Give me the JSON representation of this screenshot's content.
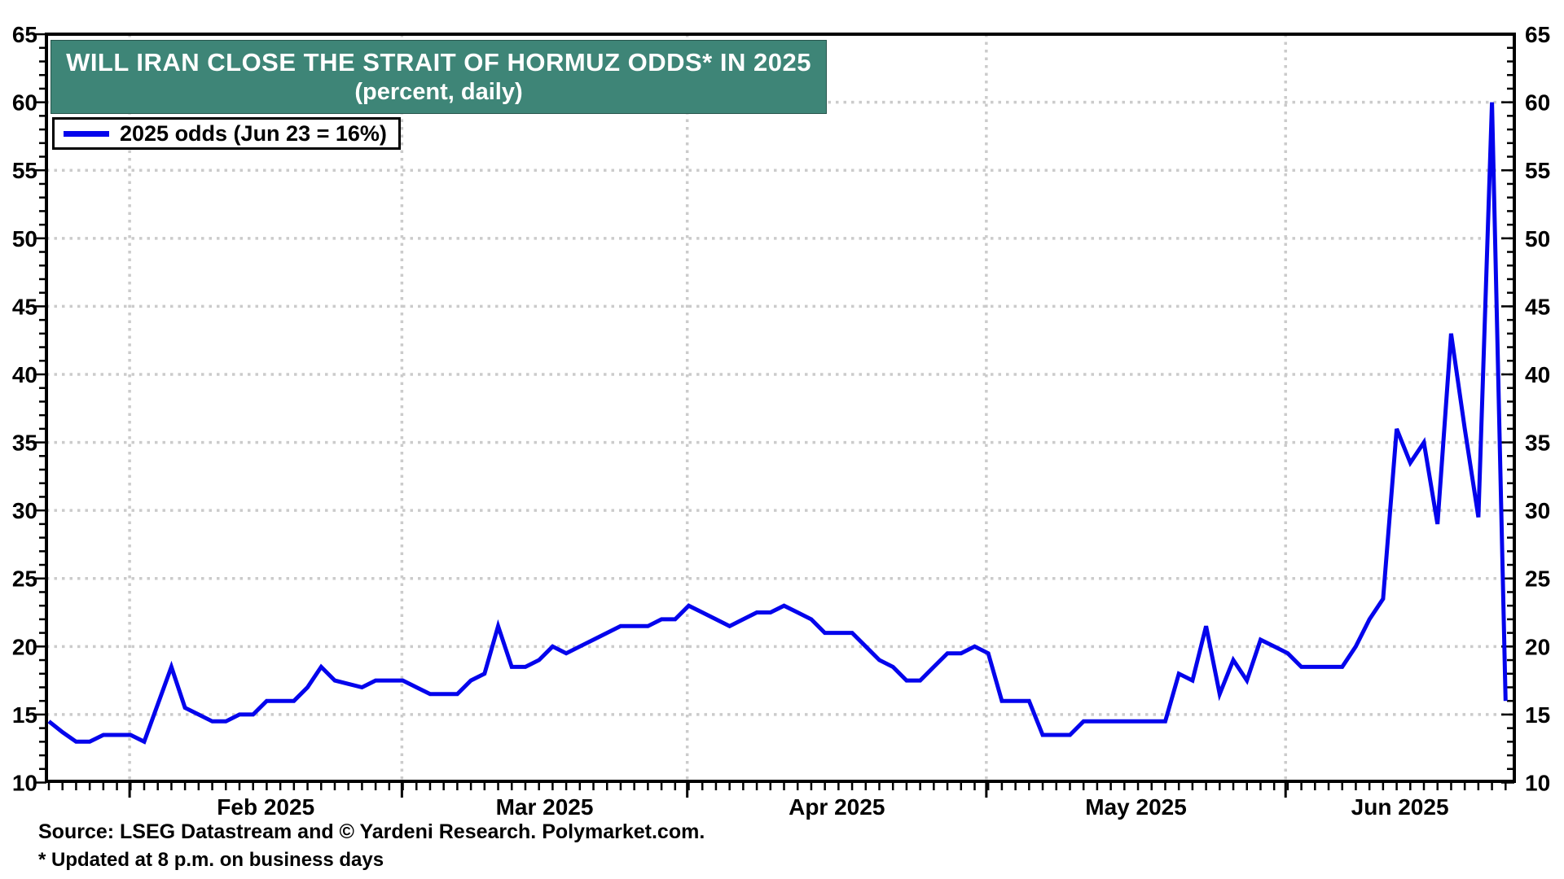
{
  "banner": {
    "title": "WILL IRAN CLOSE THE STRAIT OF HORMUZ ODDS* IN 2025",
    "subtitle": "(percent, daily)",
    "bg_color": "#3E8577",
    "text_color": "#FFFFFF"
  },
  "legend": {
    "label": "2025 odds (Jun 23 = 16%)"
  },
  "footer": {
    "source": "Source: LSEG Datastream and © Yardeni Research. Polymarket.com.",
    "footnote": "* Updated at 8 p.m. on business days"
  },
  "colors": {
    "line": "#0404EC",
    "grid": "#CBCBCB",
    "axis": "#000000",
    "background": "#FFFFFF"
  },
  "chart_data": {
    "type": "line",
    "title": "WILL IRAN CLOSE THE STRAIT OF HORMUZ ODDS* IN 2025",
    "subtitle": "(percent, daily)",
    "ylabel": "percent",
    "ylim": [
      10,
      65
    ],
    "ytick_values": [
      10,
      15,
      20,
      25,
      30,
      35,
      40,
      45,
      50,
      55,
      60,
      65
    ],
    "grid_values": [
      15,
      20,
      25,
      30,
      35,
      40,
      45,
      50,
      55,
      60
    ],
    "grid": true,
    "legend_position": "top-left",
    "x_unit": "business days, late Jan 2025 through Jun 23 2025",
    "month_boundaries": [
      {
        "label": "Feb 2025",
        "day": 5.93
      },
      {
        "label": "Mar 2025",
        "day": 25.93
      },
      {
        "label": "Apr 2025",
        "day": 46.89
      },
      {
        "label": "May 2025",
        "day": 68.86
      },
      {
        "label": "Jun 2025",
        "day": 90.84
      }
    ],
    "series": [
      {
        "name": "2025 odds (Jun 23 = 16%)",
        "color": "#0404EC",
        "values": [
          14.5,
          13.7,
          13,
          13,
          13.5,
          13.5,
          13.5,
          13,
          15.75,
          18.5,
          15.5,
          15,
          14.5,
          14.5,
          15,
          15,
          16,
          16,
          16,
          17,
          18.5,
          17.5,
          17.25,
          17,
          17.5,
          17.5,
          17.5,
          17,
          16.5,
          16.5,
          16.5,
          17.5,
          18,
          21.5,
          18.5,
          18.5,
          19,
          20,
          19.5,
          20,
          20.5,
          21,
          21.5,
          21.5,
          21.5,
          22,
          22,
          23,
          22.5,
          22,
          21.5,
          22,
          22.5,
          22.5,
          23,
          22.5,
          22,
          21,
          21,
          21,
          20,
          19,
          18.5,
          17.5,
          17.5,
          18.5,
          19.5,
          19.5,
          20,
          19.5,
          16,
          16,
          16,
          13.5,
          13.5,
          13.5,
          14.5,
          14.5,
          14.5,
          14.5,
          14.5,
          14.5,
          14.5,
          18,
          17.5,
          21.5,
          16.5,
          19,
          17.5,
          20.5,
          20,
          19.5,
          18.5,
          18.5,
          18.5,
          18.5,
          20,
          22,
          23.5,
          36,
          33.5,
          35,
          29,
          43,
          36,
          29.5,
          60,
          16
        ]
      }
    ],
    "annotations": {
      "last_point": {
        "date": "Jun 23",
        "value": 16
      }
    }
  }
}
